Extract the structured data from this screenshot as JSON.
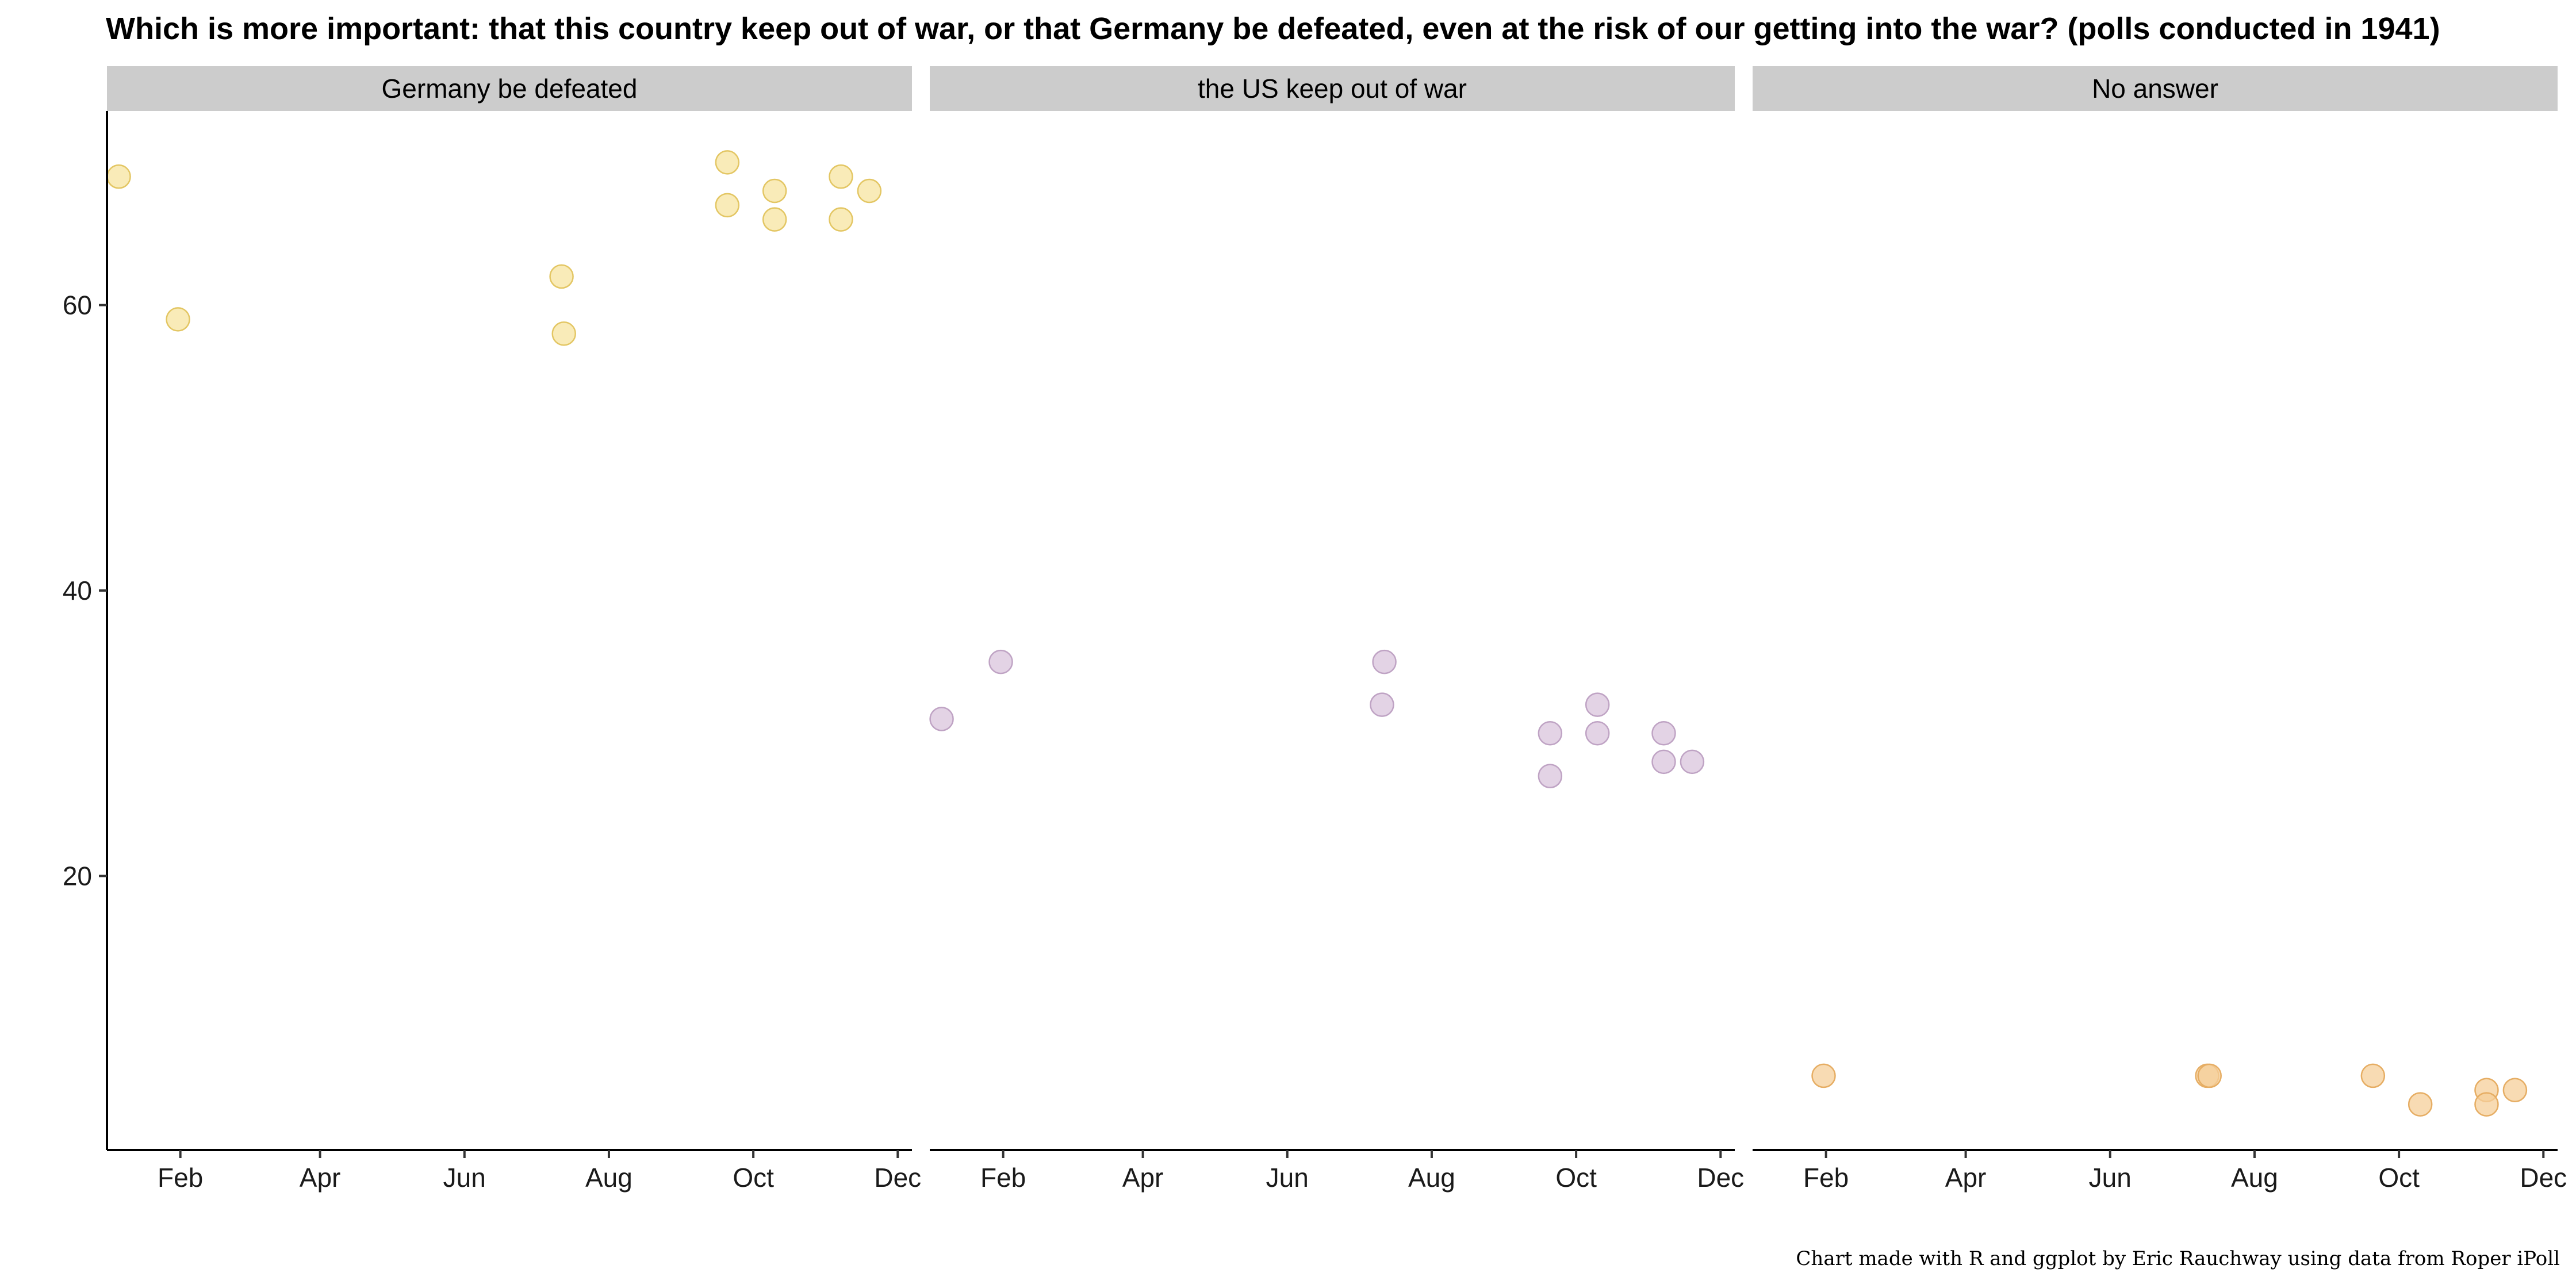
{
  "title": "Which is more important: that this country keep out of war, or that Germany be defeated, even at the risk of our getting into the war? (polls conducted in 1941)",
  "caption": "Chart made with R and ggplot by Eric Rauchway using data from Roper iPoll",
  "chart_data": {
    "type": "scatter",
    "facets": [
      "Germany be defeated",
      "the US keep out of war",
      "No answer"
    ],
    "x_axis": {
      "type": "date",
      "range": [
        "1941-01-01",
        "1941-12-07"
      ],
      "ticks": [
        {
          "date": "1941-02-01",
          "label": "Feb"
        },
        {
          "date": "1941-04-01",
          "label": "Apr"
        },
        {
          "date": "1941-06-01",
          "label": "Jun"
        },
        {
          "date": "1941-08-01",
          "label": "Aug"
        },
        {
          "date": "1941-10-01",
          "label": "Oct"
        },
        {
          "date": "1941-12-01",
          "label": "Dec"
        }
      ]
    },
    "y_axis": {
      "range": [
        0.8,
        73.6
      ],
      "ticks": [
        20,
        40,
        60
      ]
    },
    "grid": false,
    "legend": "none",
    "series": [
      {
        "facet": "Germany be defeated",
        "color": "#f7e4a0",
        "stroke": "#e3c663",
        "points": [
          {
            "date": "1941-01-06",
            "value": 69
          },
          {
            "date": "1941-01-31",
            "value": 59
          },
          {
            "date": "1941-07-12",
            "value": 62
          },
          {
            "date": "1941-07-13",
            "value": 58
          },
          {
            "date": "1941-09-20",
            "value": 70
          },
          {
            "date": "1941-09-20",
            "value": 67
          },
          {
            "date": "1941-10-10",
            "value": 68
          },
          {
            "date": "1941-10-10",
            "value": 66
          },
          {
            "date": "1941-11-07",
            "value": 69
          },
          {
            "date": "1941-11-07",
            "value": 66
          },
          {
            "date": "1941-11-19",
            "value": 68
          }
        ]
      },
      {
        "facet": "the US keep out of war",
        "color": "#d9c4dc",
        "stroke": "#bfa3c4",
        "points": [
          {
            "date": "1941-01-06",
            "value": 31
          },
          {
            "date": "1941-01-31",
            "value": 35
          },
          {
            "date": "1941-07-12",
            "value": 35
          },
          {
            "date": "1941-07-11",
            "value": 32
          },
          {
            "date": "1941-09-20",
            "value": 30
          },
          {
            "date": "1941-09-20",
            "value": 27
          },
          {
            "date": "1941-10-10",
            "value": 32
          },
          {
            "date": "1941-10-10",
            "value": 30
          },
          {
            "date": "1941-11-07",
            "value": 30
          },
          {
            "date": "1941-11-07",
            "value": 28
          },
          {
            "date": "1941-11-19",
            "value": 28
          }
        ]
      },
      {
        "facet": "No answer",
        "color": "#f6cf9a",
        "stroke": "#e6ad63",
        "points": [
          {
            "date": "1941-01-31",
            "value": 6
          },
          {
            "date": "1941-07-12",
            "value": 6
          },
          {
            "date": "1941-07-13",
            "value": 6
          },
          {
            "date": "1941-09-20",
            "value": 6
          },
          {
            "date": "1941-10-10",
            "value": 4
          },
          {
            "date": "1941-11-07",
            "value": 5
          },
          {
            "date": "1941-11-07",
            "value": 4
          },
          {
            "date": "1941-11-19",
            "value": 5
          }
        ]
      }
    ]
  }
}
